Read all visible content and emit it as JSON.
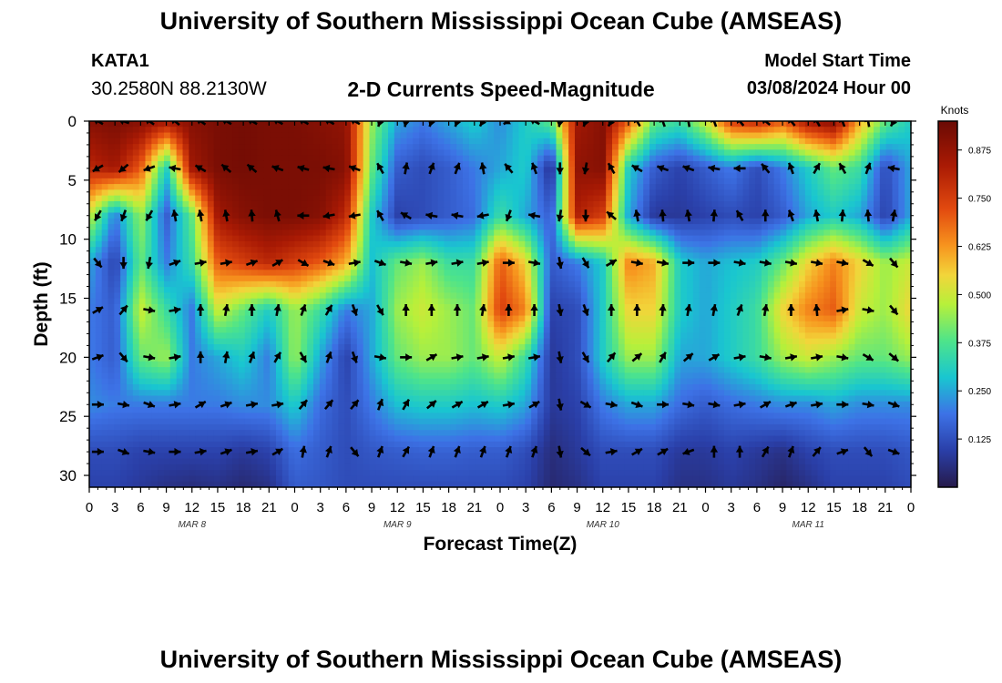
{
  "header": {
    "title": "University of Southern Mississippi Ocean Cube (AMSEAS)",
    "station": "KATA1",
    "coordinates": "30.2580N  88.2130W",
    "subtitle": "2-D Currents Speed-Magnitude",
    "model_start_label": "Model Start Time",
    "model_start_value": "03/08/2024 Hour 00"
  },
  "footer": {
    "title": "University of Southern Mississippi Ocean Cube (AMSEAS)"
  },
  "chart_data": {
    "type": "heatmap",
    "title": "2-D Currents Speed-Magnitude",
    "xlabel": "Forecast Time(Z)",
    "ylabel": "Depth (ft)",
    "xlim": [
      0,
      96
    ],
    "ylim": [
      31,
      0
    ],
    "x_ticks": [
      0,
      3,
      6,
      9,
      12,
      15,
      18,
      21,
      24,
      27,
      30,
      33,
      36,
      39,
      42,
      45,
      48,
      51,
      54,
      57,
      60,
      63,
      66,
      69,
      72,
      75,
      78,
      81,
      84,
      87,
      90,
      93,
      96
    ],
    "x_tick_labels": [
      "0",
      "3",
      "6",
      "9",
      "12",
      "15",
      "18",
      "21",
      "0",
      "3",
      "6",
      "9",
      "12",
      "15",
      "18",
      "21",
      "0",
      "3",
      "6",
      "9",
      "12",
      "15",
      "18",
      "21",
      "0",
      "3",
      "6",
      "9",
      "12",
      "15",
      "18",
      "21",
      "0"
    ],
    "day_labels": [
      {
        "x": 12,
        "label": "MAR 8"
      },
      {
        "x": 36,
        "label": "MAR 9"
      },
      {
        "x": 60,
        "label": "MAR 10"
      },
      {
        "x": 84,
        "label": "MAR 11"
      }
    ],
    "y_ticks": [
      0,
      5,
      10,
      15,
      20,
      25,
      30
    ],
    "colorbar": {
      "label": "Knots",
      "min": 0.0,
      "max": 0.95,
      "ticks": [
        0.125,
        0.25,
        0.375,
        0.5,
        0.625,
        0.75,
        0.875
      ],
      "tick_labels": [
        "0.125",
        "0.250",
        "0.375",
        "0.500",
        "0.625",
        "0.750",
        "0.875"
      ]
    },
    "speed_times": [
      0,
      3,
      6,
      9,
      12,
      15,
      18,
      21,
      24,
      27,
      30,
      33,
      36,
      39,
      42,
      45,
      48,
      51,
      54,
      57,
      60,
      63,
      66,
      69,
      72,
      75,
      78,
      81,
      84,
      87,
      90,
      93,
      96
    ],
    "speed_depths": [
      0,
      4,
      8,
      12,
      16,
      20,
      24,
      28,
      31
    ],
    "speed_knots": [
      [
        0.9,
        0.92,
        0.9,
        0.85,
        0.9,
        0.92,
        0.93,
        0.92,
        0.92,
        0.9,
        0.88,
        0.45,
        0.25,
        0.2,
        0.25,
        0.3,
        0.22,
        0.3,
        0.4,
        0.85,
        0.9,
        0.7,
        0.4,
        0.35,
        0.5,
        0.75,
        0.8,
        0.7,
        0.85,
        0.9,
        0.6,
        0.4,
        0.3
      ],
      [
        0.8,
        0.85,
        0.7,
        0.3,
        0.85,
        0.92,
        0.93,
        0.92,
        0.92,
        0.92,
        0.9,
        0.4,
        0.15,
        0.12,
        0.15,
        0.2,
        0.25,
        0.3,
        0.05,
        0.88,
        0.9,
        0.3,
        0.15,
        0.1,
        0.15,
        0.2,
        0.12,
        0.2,
        0.3,
        0.4,
        0.35,
        0.12,
        0.25
      ],
      [
        0.5,
        0.2,
        0.45,
        0.15,
        0.4,
        0.85,
        0.9,
        0.92,
        0.92,
        0.9,
        0.8,
        0.3,
        0.1,
        0.12,
        0.15,
        0.18,
        0.35,
        0.25,
        0.15,
        0.82,
        0.75,
        0.25,
        0.08,
        0.08,
        0.1,
        0.12,
        0.1,
        0.15,
        0.25,
        0.3,
        0.25,
        0.1,
        0.25
      ],
      [
        0.25,
        0.1,
        0.4,
        0.2,
        0.35,
        0.7,
        0.75,
        0.8,
        0.75,
        0.7,
        0.6,
        0.28,
        0.4,
        0.45,
        0.35,
        0.35,
        0.7,
        0.55,
        0.15,
        0.2,
        0.3,
        0.65,
        0.6,
        0.3,
        0.25,
        0.28,
        0.3,
        0.4,
        0.55,
        0.65,
        0.55,
        0.45,
        0.5
      ],
      [
        0.2,
        0.15,
        0.5,
        0.35,
        0.2,
        0.5,
        0.4,
        0.3,
        0.45,
        0.35,
        0.2,
        0.25,
        0.45,
        0.5,
        0.45,
        0.4,
        0.75,
        0.65,
        0.1,
        0.12,
        0.3,
        0.55,
        0.55,
        0.3,
        0.25,
        0.3,
        0.35,
        0.55,
        0.65,
        0.7,
        0.5,
        0.45,
        0.55
      ],
      [
        0.2,
        0.15,
        0.4,
        0.45,
        0.2,
        0.25,
        0.3,
        0.2,
        0.45,
        0.25,
        0.1,
        0.25,
        0.4,
        0.45,
        0.45,
        0.4,
        0.5,
        0.35,
        0.08,
        0.12,
        0.3,
        0.45,
        0.45,
        0.25,
        0.25,
        0.3,
        0.35,
        0.45,
        0.5,
        0.45,
        0.4,
        0.4,
        0.45
      ],
      [
        0.22,
        0.2,
        0.2,
        0.2,
        0.2,
        0.2,
        0.22,
        0.22,
        0.3,
        0.18,
        0.12,
        0.2,
        0.28,
        0.3,
        0.3,
        0.28,
        0.3,
        0.25,
        0.08,
        0.1,
        0.2,
        0.25,
        0.25,
        0.18,
        0.15,
        0.18,
        0.2,
        0.22,
        0.22,
        0.25,
        0.22,
        0.22,
        0.22
      ],
      [
        0.12,
        0.12,
        0.1,
        0.1,
        0.1,
        0.1,
        0.08,
        0.1,
        0.18,
        0.15,
        0.12,
        0.14,
        0.15,
        0.16,
        0.16,
        0.15,
        0.15,
        0.12,
        0.05,
        0.08,
        0.12,
        0.12,
        0.12,
        0.08,
        0.08,
        0.1,
        0.08,
        0.06,
        0.1,
        0.12,
        0.12,
        0.12,
        0.14
      ],
      [
        0.1,
        0.1,
        0.08,
        0.06,
        0.05,
        0.06,
        0.04,
        0.06,
        0.15,
        0.14,
        0.12,
        0.12,
        0.12,
        0.12,
        0.12,
        0.12,
        0.12,
        0.1,
        0.04,
        0.06,
        0.1,
        0.1,
        0.1,
        0.06,
        0.06,
        0.08,
        0.06,
        0.03,
        0.06,
        0.1,
        0.1,
        0.1,
        0.12
      ]
    ],
    "vector_times": [
      1,
      4,
      7,
      10,
      13,
      16,
      19,
      22,
      25,
      28,
      31,
      34,
      37,
      40,
      43,
      46,
      49,
      52,
      55,
      58,
      61,
      64,
      67,
      70,
      73,
      76,
      79,
      82,
      85,
      88,
      91,
      94
    ],
    "vector_depths": [
      0,
      4,
      8,
      12,
      16,
      20,
      24,
      28
    ],
    "vector_directions_deg": [
      [
        300,
        290,
        305,
        310,
        305,
        300,
        300,
        300,
        300,
        300,
        300,
        200,
        190,
        200,
        200,
        210,
        240,
        300,
        190,
        200,
        210,
        330,
        340,
        350,
        340,
        320,
        310,
        320,
        330,
        340,
        350,
        210
      ],
      [
        240,
        230,
        250,
        280,
        300,
        310,
        310,
        290,
        285,
        280,
        290,
        330,
        10,
        20,
        20,
        350,
        320,
        340,
        180,
        190,
        330,
        300,
        290,
        290,
        280,
        270,
        320,
        340,
        30,
        330,
        20,
        280
      ],
      [
        210,
        200,
        210,
        350,
        350,
        350,
        355,
        345,
        270,
        260,
        260,
        330,
        300,
        280,
        280,
        260,
        200,
        280,
        190,
        180,
        310,
        350,
        355,
        350,
        5,
        330,
        0,
        340,
        350,
        5,
        355,
        10
      ],
      [
        140,
        180,
        190,
        70,
        80,
        80,
        70,
        60,
        120,
        110,
        80,
        110,
        100,
        80,
        80,
        80,
        90,
        100,
        170,
        150,
        60,
        100,
        100,
        90,
        90,
        100,
        100,
        100,
        100,
        100,
        120,
        140
      ],
      [
        60,
        40,
        100,
        80,
        0,
        10,
        0,
        10,
        20,
        30,
        160,
        150,
        0,
        0,
        0,
        10,
        0,
        0,
        170,
        160,
        0,
        0,
        5,
        10,
        10,
        20,
        10,
        0,
        355,
        80,
        100,
        140
      ],
      [
        70,
        140,
        100,
        80,
        0,
        10,
        20,
        30,
        150,
        20,
        160,
        100,
        90,
        60,
        80,
        80,
        80,
        80,
        170,
        150,
        40,
        50,
        30,
        50,
        60,
        80,
        100,
        80,
        80,
        100,
        120,
        130
      ],
      [
        90,
        100,
        110,
        80,
        60,
        70,
        80,
        80,
        40,
        40,
        40,
        20,
        30,
        50,
        60,
        60,
        80,
        60,
        170,
        120,
        100,
        110,
        90,
        100,
        100,
        80,
        60,
        70,
        80,
        90,
        100,
        110
      ],
      [
        90,
        110,
        100,
        90,
        80,
        70,
        80,
        60,
        10,
        20,
        140,
        20,
        30,
        20,
        20,
        20,
        20,
        20,
        170,
        130,
        80,
        60,
        60,
        250,
        0,
        0,
        30,
        20,
        40,
        70,
        140,
        110
      ]
    ]
  }
}
